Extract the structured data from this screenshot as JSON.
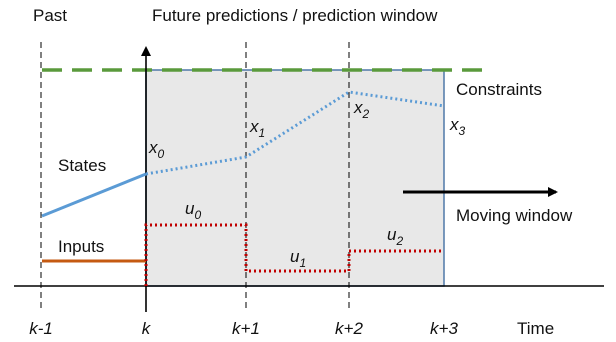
{
  "labels": {
    "past": "Past",
    "future": "Future predictions / prediction window",
    "constraints": "Constraints",
    "states": "States",
    "inputs": "Inputs",
    "moving_window": "Moving window",
    "time": "Time"
  },
  "ticks": [
    "k-1",
    "k",
    "k+1",
    "k+2",
    "k+3"
  ],
  "state_points": [
    {
      "base": "x",
      "sub": "0"
    },
    {
      "base": "x",
      "sub": "1"
    },
    {
      "base": "x",
      "sub": "2"
    },
    {
      "base": "x",
      "sub": "3"
    }
  ],
  "input_points": [
    {
      "base": "u",
      "sub": "0"
    },
    {
      "base": "u",
      "sub": "1"
    },
    {
      "base": "u",
      "sub": "2"
    }
  ],
  "colors": {
    "window_fill": "#e8e8e8",
    "window_border": "#4f78a8",
    "constraint": "#5a9a3c",
    "state_past": "#5b9bd5",
    "state_future": "#5b9bd5",
    "input_past": "#c55a11",
    "input_future": "#c00000",
    "axis": "#000000"
  }
}
